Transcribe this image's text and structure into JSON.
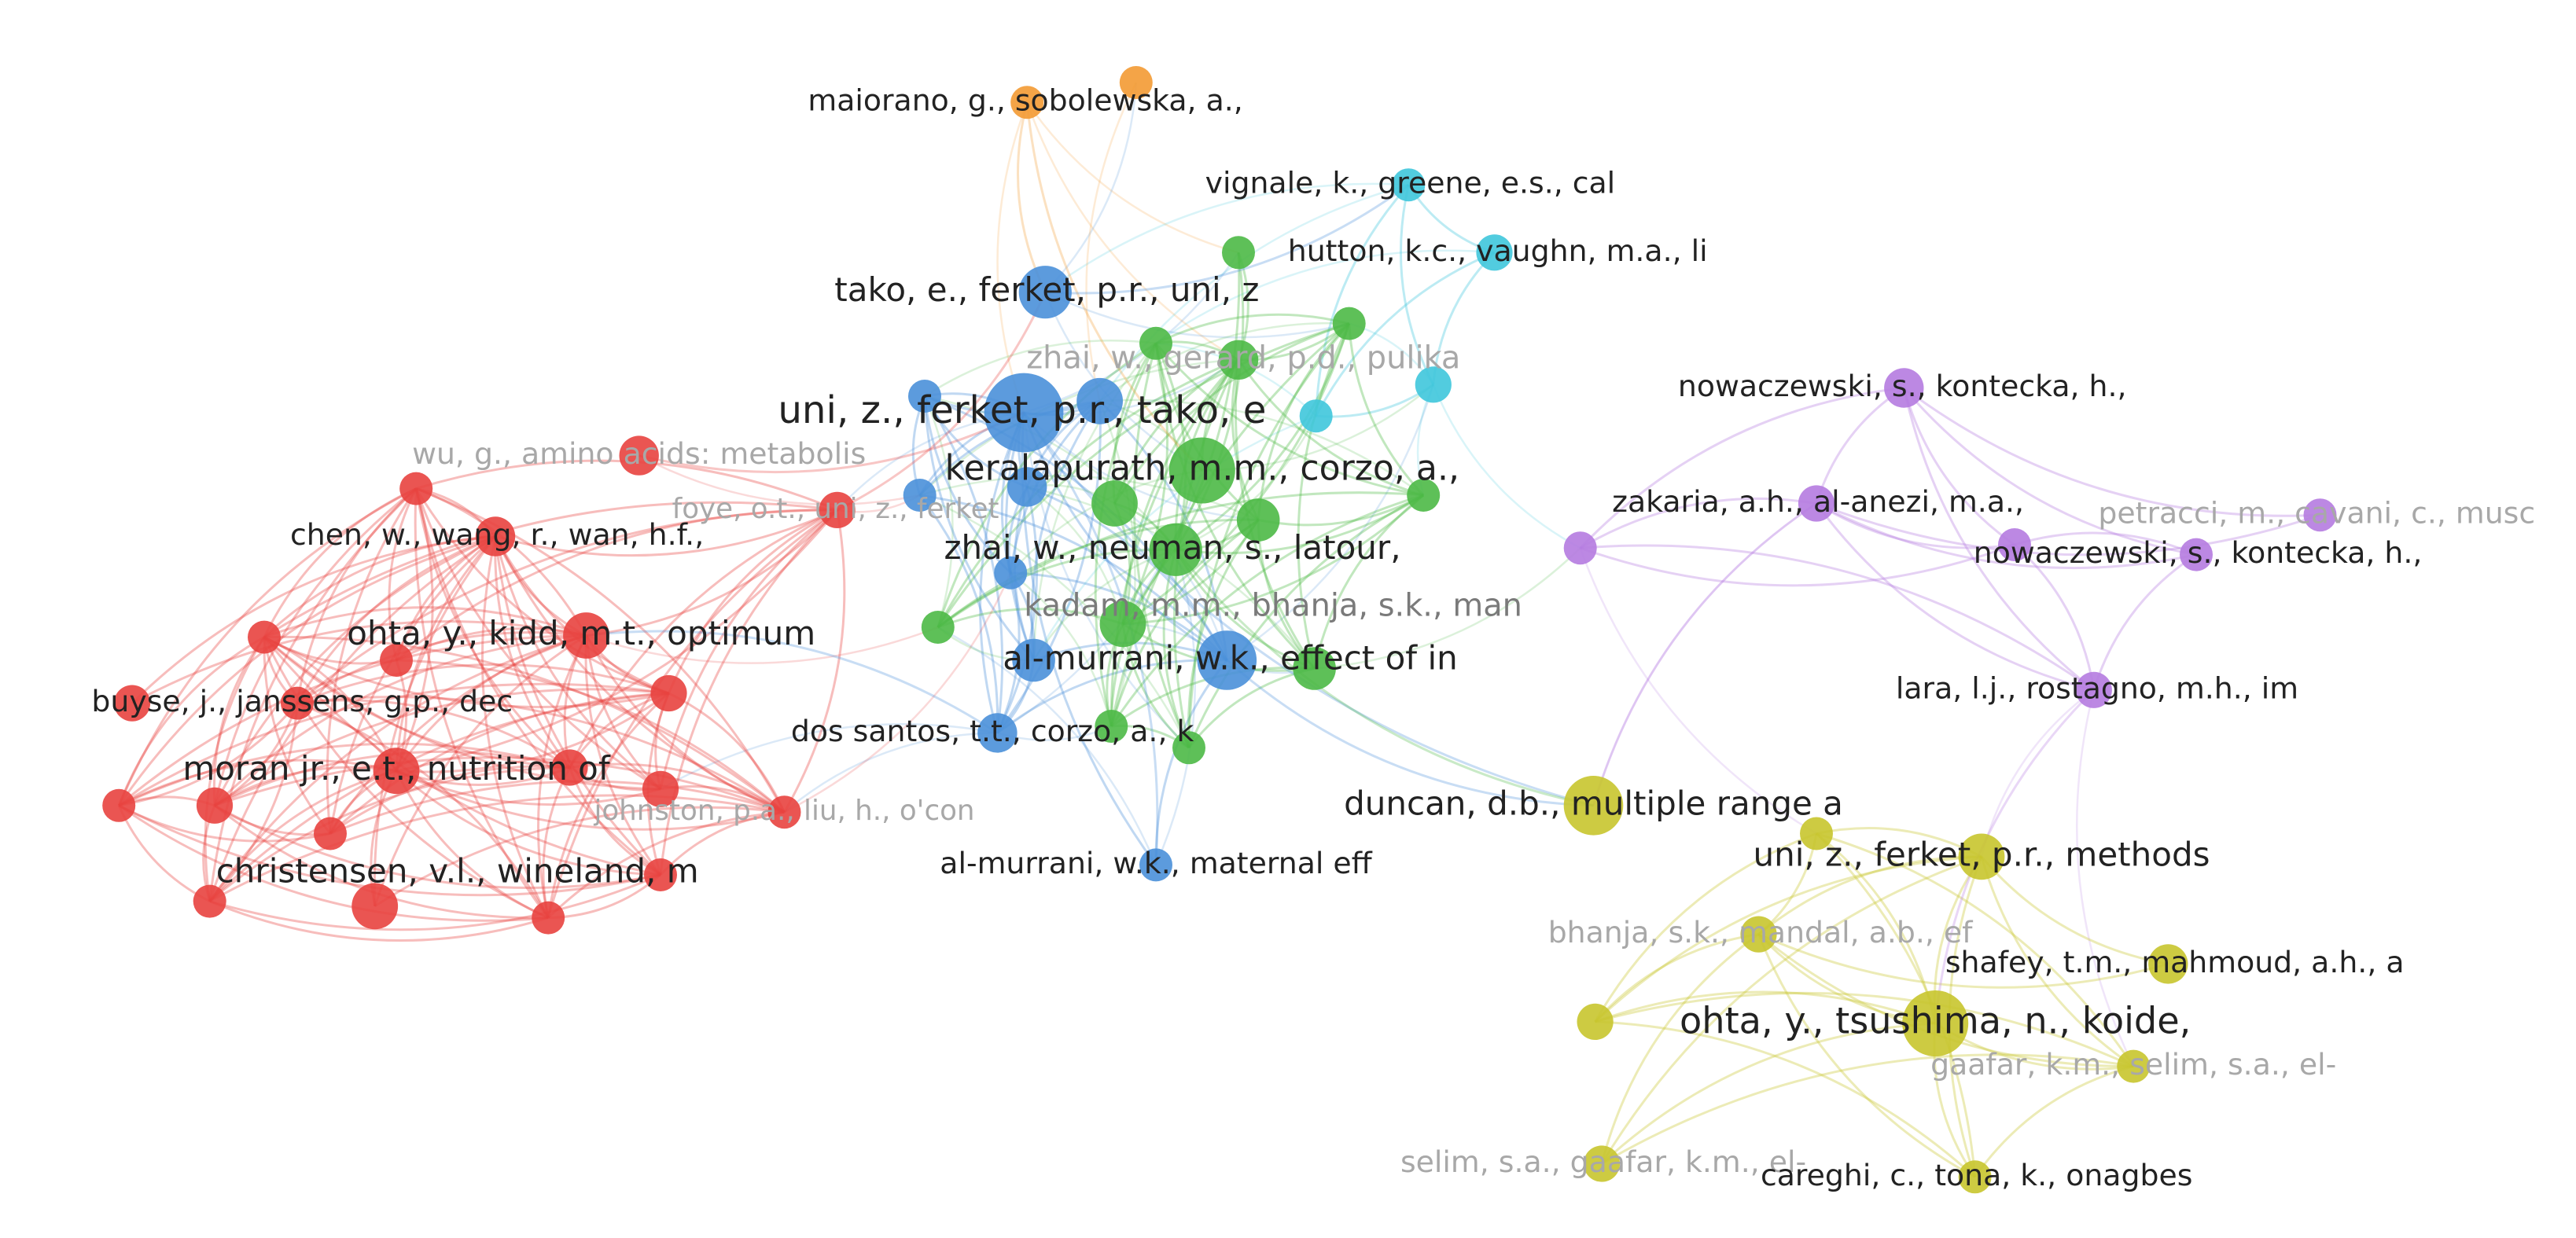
{
  "nodes": [
    {
      "label": "maiorano, g., sobolewska, a.,",
      "color": "#f39a33"
    },
    {
      "label": "vignale, k., greene, e.s., cal",
      "color": "#3fc6dc"
    },
    {
      "label": "hutton, k.c., vaughn, m.a., li",
      "color": "#3fc6dc"
    },
    {
      "label": "tako, e., ferket, p.r., uni, z",
      "color": "#4a90d9"
    },
    {
      "label": "uni, z., ferket, p.r., tako, e",
      "color": "#4a90d9"
    },
    {
      "label": "al-murrani, w.k., effect of in",
      "color": "#4a90d9"
    },
    {
      "label": "al-murrani, w.k., maternal eff",
      "color": "#4a90d9"
    },
    {
      "label": "dos santos, t.t., corzo, a., k",
      "color": "#4a90d9"
    },
    {
      "label": "zhai, w., gerard, p.d., pulika",
      "color": "#4cb946"
    },
    {
      "label": "keralapurath, m.m., corzo, a.,",
      "color": "#4cb946"
    },
    {
      "label": "zhai, w., neuman, s., latour,",
      "color": "#4cb946"
    },
    {
      "label": "kadam, m.m., bhanja, s.k., man",
      "color": "#4cb946"
    },
    {
      "label": "wu, g., amino acids: metabolis",
      "color": "#e8423f"
    },
    {
      "label": "chen, w., wang, r., wan, h.f.,",
      "color": "#e8423f"
    },
    {
      "label": "ohta, y., kidd, m.t., optimum",
      "color": "#e8423f"
    },
    {
      "label": "buyse, j., janssens, g.p., dec",
      "color": "#e8423f"
    },
    {
      "label": "moran jr., e.t., nutrition of",
      "color": "#e8423f"
    },
    {
      "label": "johnston, p.a., liu, h., o'con",
      "color": "#e8423f"
    },
    {
      "label": "christensen, v.l., wineland, m",
      "color": "#e8423f"
    },
    {
      "label": "nowaczewski, s., kontecka, h.,",
      "color": "#b57be0"
    },
    {
      "label": "zakaria, a.h., al-anezi, m.a.,",
      "color": "#b57be0"
    },
    {
      "label": "petracci, m., cavani, c., musc",
      "color": "#b57be0"
    },
    {
      "label": "nowaczewski, s., kontecka, h.,",
      "color": "#b57be0"
    },
    {
      "label": "lara, l.j., rostagno, m.h., im",
      "color": "#b57be0"
    },
    {
      "label": "duncan, d.b., multiple range a",
      "color": "#c8c52e"
    },
    {
      "label": "uni, z., ferket, p.r., methods",
      "color": "#c8c52e"
    },
    {
      "label": "bhanja, s.k., mandal, a.b., ef",
      "color": "#c8c52e"
    },
    {
      "label": "shafey, t.m., mahmoud, a.h., a",
      "color": "#c8c52e"
    },
    {
      "label": "ohta, y., tsushima, n., koide,",
      "color": "#c8c52e"
    },
    {
      "label": "gaafar, k.m., selim, s.a., el-",
      "color": "#c8c52e"
    },
    {
      "label": "selim, s.a., gaafar, k.m., el-",
      "color": "#c8c52e"
    },
    {
      "label": "careghi, c., tona, k., onagbes",
      "color": "#c8c52e"
    },
    {
      "label": "foye, o.t., uni, z., ferket",
      "color": "#e8423f"
    }
  ]
}
